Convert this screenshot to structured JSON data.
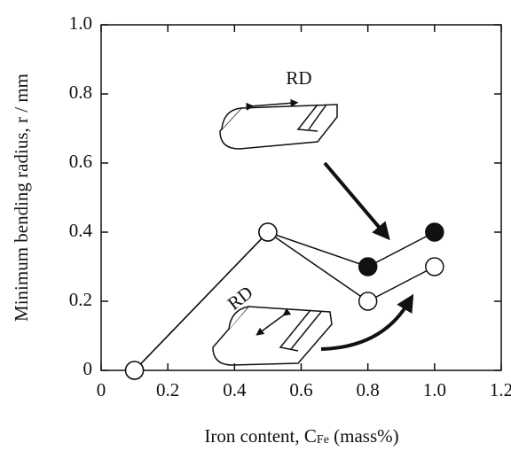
{
  "chart_data": {
    "type": "line",
    "xlabel": "Iron content, C",
    "xlabel_sub": "Fe",
    "xlabel_tail": " (mass%)",
    "ylabel": "Minimum bending radius, r / mm",
    "annotations": [
      "RD",
      "RD"
    ],
    "xlim": [
      0,
      1.2
    ],
    "ylim": [
      0,
      1.0
    ],
    "xticks": [
      0,
      0.2,
      0.4,
      0.6,
      0.8,
      {
        "value": 1,
        "label": "1.0"
      },
      1.2
    ],
    "yticks": [
      0,
      0.2,
      0.4,
      0.6,
      0.8,
      {
        "value": 1,
        "label": "1.0"
      }
    ],
    "series": [
      {
        "color": "#111111",
        "marker_fill": "#111111",
        "x": [
          0.1,
          0.5,
          0.8,
          1.0
        ],
        "values": [
          0,
          0.4,
          0.3,
          0.4
        ]
      },
      {
        "color": "#111111",
        "marker_fill": "#ffffff",
        "x": [
          0.1,
          0.5,
          0.8,
          1.0
        ],
        "values": [
          0,
          0.4,
          0.2,
          0.3
        ]
      }
    ]
  }
}
